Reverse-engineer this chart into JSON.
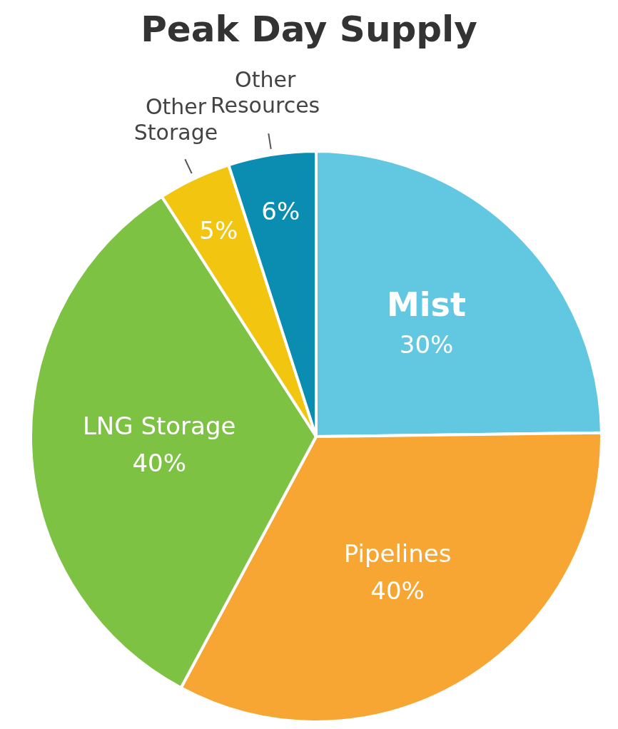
{
  "chart_data": {
    "type": "pie",
    "title": "Peak Day Supply",
    "categories": [
      "Mist",
      "Pipelines",
      "LNG Storage",
      "Other Storage",
      "Other Resources"
    ],
    "values": [
      30,
      40,
      40,
      5,
      6
    ],
    "value_labels": [
      "30%",
      "40%",
      "40%",
      "5%",
      "6%"
    ],
    "colors": [
      "#62c8e2",
      "#f7a533",
      "#7dc242",
      "#f2c511",
      "#0a8db0"
    ]
  }
}
